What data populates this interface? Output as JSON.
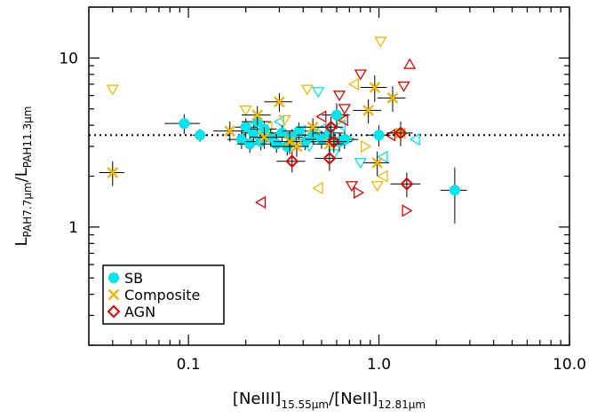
{
  "chart_data": {
    "type": "scatter",
    "title": "",
    "xlabel": {
      "main1": "[NeIII]",
      "sub1": "15.55μm",
      "main2": "/[NeII]",
      "sub2": "12.81μm"
    },
    "ylabel": {
      "main1": "L",
      "sub1": "PAH7.7μm",
      "main2": "/L",
      "sub2": "PAH11.3μm"
    },
    "x_scale": "log",
    "y_scale": "log",
    "xlim": [
      0.03,
      10.0
    ],
    "ylim": [
      0.2,
      20.0
    ],
    "xticks": [
      {
        "value": 0.1,
        "label": "0.1"
      },
      {
        "value": 1.0,
        "label": "1.0"
      },
      {
        "value": 10.0,
        "label": "10.0"
      }
    ],
    "yticks": [
      {
        "value": 1,
        "label": "1"
      },
      {
        "value": 10,
        "label": "10"
      }
    ],
    "reference_line": {
      "y": 3.5,
      "style": "dotted"
    },
    "colors": {
      "SB": "#00e5ee",
      "Composite": "#f5b800",
      "AGN": "#e60000",
      "errorbar": "#000000"
    },
    "legend": {
      "placement": "bottom-left",
      "entries": [
        {
          "label": "SB",
          "marker": "circle",
          "color": "#00e5ee"
        },
        {
          "label": "Composite",
          "marker": "x",
          "color": "#f5b800"
        },
        {
          "label": "AGN",
          "marker": "diamond",
          "color": "#e60000"
        }
      ]
    },
    "series": [
      {
        "name": "SB",
        "marker": "circle",
        "points": [
          {
            "x": 0.095,
            "y": 4.1,
            "xerr": 0.02,
            "yerr": 0.55
          },
          {
            "x": 0.115,
            "y": 3.5,
            "xerr": 0.01,
            "yerr": 0.3
          },
          {
            "x": 0.19,
            "y": 3.3,
            "xerr": 0.03,
            "yerr": 0.4
          },
          {
            "x": 0.2,
            "y": 3.9,
            "xerr": 0.03,
            "yerr": 0.5
          },
          {
            "x": 0.21,
            "y": 3.1,
            "xerr": 0.03,
            "yerr": 0.35
          },
          {
            "x": 0.22,
            "y": 3.6,
            "xerr": 0.03,
            "yerr": 0.4
          },
          {
            "x": 0.23,
            "y": 4.2,
            "xerr": 0.04,
            "yerr": 0.5
          },
          {
            "x": 0.24,
            "y": 3.2,
            "xerr": 0.04,
            "yerr": 0.35
          },
          {
            "x": 0.25,
            "y": 3.8,
            "xerr": 0.04,
            "yerr": 0.45
          },
          {
            "x": 0.27,
            "y": 3.4,
            "xerr": 0.05,
            "yerr": 0.4
          },
          {
            "x": 0.29,
            "y": 3.1,
            "xerr": 0.05,
            "yerr": 0.35
          },
          {
            "x": 0.31,
            "y": 3.6,
            "xerr": 0.05,
            "yerr": 0.4
          },
          {
            "x": 0.33,
            "y": 3.0,
            "xerr": 0.06,
            "yerr": 0.35
          },
          {
            "x": 0.35,
            "y": 3.4,
            "xerr": 0.06,
            "yerr": 0.4
          },
          {
            "x": 0.38,
            "y": 3.7,
            "xerr": 0.07,
            "yerr": 0.45
          },
          {
            "x": 0.41,
            "y": 3.2,
            "xerr": 0.07,
            "yerr": 0.35
          },
          {
            "x": 0.45,
            "y": 3.5,
            "xerr": 0.08,
            "yerr": 0.4
          },
          {
            "x": 0.5,
            "y": 3.3,
            "xerr": 0.09,
            "yerr": 0.4
          },
          {
            "x": 0.55,
            "y": 3.6,
            "xerr": 0.1,
            "yerr": 0.45
          },
          {
            "x": 0.6,
            "y": 4.6,
            "xerr": 0.1,
            "yerr": 0.8
          },
          {
            "x": 0.62,
            "y": 3.2,
            "xerr": 0.1,
            "yerr": 0.4
          },
          {
            "x": 0.66,
            "y": 3.3,
            "xerr": 0.12,
            "yerr": 0.4
          },
          {
            "x": 1.0,
            "y": 3.5,
            "xerr": 0.15,
            "yerr": 0.5
          },
          {
            "x": 2.5,
            "y": 1.65,
            "xerr": 0.4,
            "yerr": 0.6
          }
        ]
      },
      {
        "name": "Composite",
        "marker": "x",
        "points": [
          {
            "x": 0.04,
            "y": 2.1,
            "xerr": 0.006,
            "yerr": 0.35
          },
          {
            "x": 0.165,
            "y": 3.7,
            "xerr": 0.03,
            "yerr": 0.5
          },
          {
            "x": 0.23,
            "y": 4.6,
            "xerr": 0.04,
            "yerr": 0.6
          },
          {
            "x": 0.25,
            "y": 3.4,
            "xerr": 0.04,
            "yerr": 0.5
          },
          {
            "x": 0.3,
            "y": 5.5,
            "xerr": 0.05,
            "yerr": 0.7
          },
          {
            "x": 0.34,
            "y": 3.2,
            "xerr": 0.06,
            "yerr": 0.5
          },
          {
            "x": 0.37,
            "y": 3.0,
            "xerr": 0.06,
            "yerr": 0.4
          },
          {
            "x": 0.45,
            "y": 3.9,
            "xerr": 0.08,
            "yerr": 0.5
          },
          {
            "x": 0.55,
            "y": 3.1,
            "xerr": 0.1,
            "yerr": 0.45
          },
          {
            "x": 0.88,
            "y": 4.9,
            "xerr": 0.15,
            "yerr": 0.8
          },
          {
            "x": 0.95,
            "y": 6.7,
            "xerr": 0.15,
            "yerr": 1.2
          },
          {
            "x": 0.98,
            "y": 2.4,
            "xerr": 0.15,
            "yerr": 0.4
          },
          {
            "x": 1.18,
            "y": 5.8,
            "xerr": 0.2,
            "yerr": 1.0
          },
          {
            "x": 1.3,
            "y": 3.6,
            "xerr": 0.2,
            "yerr": 0.6
          }
        ]
      },
      {
        "name": "AGN",
        "marker": "diamond",
        "points": [
          {
            "x": 0.35,
            "y": 2.45,
            "xerr": 0.06,
            "yerr": 0.35
          },
          {
            "x": 0.55,
            "y": 2.55,
            "xerr": 0.09,
            "yerr": 0.4
          },
          {
            "x": 0.56,
            "y": 3.9,
            "xerr": 0.09,
            "yerr": 0.6
          },
          {
            "x": 0.58,
            "y": 3.2,
            "xerr": 0.1,
            "yerr": 0.45
          },
          {
            "x": 1.3,
            "y": 3.6,
            "xerr": 0.2,
            "yerr": 0.5
          },
          {
            "x": 1.4,
            "y": 1.8,
            "xerr": 0.25,
            "yerr": 0.3
          }
        ]
      },
      {
        "name": "Upper/lower limits (SB)",
        "marker": "open-triangle",
        "color": "#00e5ee",
        "points": [
          {
            "x": 0.21,
            "y": 3.9,
            "dir": "left"
          },
          {
            "x": 0.23,
            "y": 3.4,
            "dir": "down"
          },
          {
            "x": 0.3,
            "y": 4.2,
            "dir": "left"
          },
          {
            "x": 0.34,
            "y": 3.3,
            "dir": "down"
          },
          {
            "x": 0.39,
            "y": 3.7,
            "dir": "left"
          },
          {
            "x": 0.43,
            "y": 3.0,
            "dir": "down"
          },
          {
            "x": 0.48,
            "y": 6.3,
            "dir": "down"
          },
          {
            "x": 0.5,
            "y": 3.8,
            "dir": "left"
          },
          {
            "x": 0.58,
            "y": 2.7,
            "dir": "down"
          },
          {
            "x": 0.63,
            "y": 4.0,
            "dir": "left"
          },
          {
            "x": 0.7,
            "y": 3.3,
            "dir": "right"
          },
          {
            "x": 0.8,
            "y": 2.4,
            "dir": "down"
          },
          {
            "x": 1.05,
            "y": 2.6,
            "dir": "left"
          },
          {
            "x": 1.55,
            "y": 3.3,
            "dir": "left"
          }
        ]
      },
      {
        "name": "Upper/lower limits (Composite)",
        "marker": "open-triangle",
        "color": "#f5b800",
        "points": [
          {
            "x": 0.04,
            "y": 6.5,
            "dir": "down"
          },
          {
            "x": 0.2,
            "y": 4.9,
            "dir": "down"
          },
          {
            "x": 0.26,
            "y": 3.9,
            "dir": "left"
          },
          {
            "x": 0.32,
            "y": 4.3,
            "dir": "down"
          },
          {
            "x": 0.42,
            "y": 6.5,
            "dir": "down"
          },
          {
            "x": 0.48,
            "y": 1.7,
            "dir": "left"
          },
          {
            "x": 0.62,
            "y": 4.4,
            "dir": "down"
          },
          {
            "x": 0.74,
            "y": 7.0,
            "dir": "left"
          },
          {
            "x": 0.85,
            "y": 3.0,
            "dir": "right"
          },
          {
            "x": 1.02,
            "y": 12.5,
            "dir": "down"
          },
          {
            "x": 1.05,
            "y": 2.0,
            "dir": "left"
          },
          {
            "x": 0.98,
            "y": 1.75,
            "dir": "down"
          }
        ]
      },
      {
        "name": "Upper/lower limits (AGN)",
        "marker": "open-triangle",
        "color": "#e60000",
        "points": [
          {
            "x": 0.24,
            "y": 1.4,
            "dir": "left"
          },
          {
            "x": 0.5,
            "y": 4.5,
            "dir": "left"
          },
          {
            "x": 0.62,
            "y": 6.0,
            "dir": "down"
          },
          {
            "x": 0.66,
            "y": 5.0,
            "dir": "down"
          },
          {
            "x": 0.65,
            "y": 4.3,
            "dir": "left"
          },
          {
            "x": 0.72,
            "y": 1.75,
            "dir": "down"
          },
          {
            "x": 0.78,
            "y": 1.6,
            "dir": "right"
          },
          {
            "x": 0.8,
            "y": 8.0,
            "dir": "down"
          },
          {
            "x": 1.15,
            "y": 3.5,
            "dir": "left"
          },
          {
            "x": 1.35,
            "y": 6.8,
            "dir": "down"
          },
          {
            "x": 1.45,
            "y": 9.2,
            "dir": "up"
          },
          {
            "x": 1.4,
            "y": 1.25,
            "dir": "right"
          }
        ]
      }
    ]
  }
}
